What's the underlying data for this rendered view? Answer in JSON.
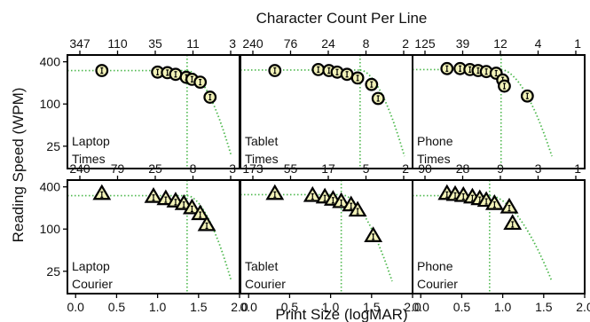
{
  "chart_data": {
    "type": "scatter",
    "title": "Character Count Per Line",
    "xlabel": "Print Size (logMAR)",
    "ylabel": "Reading Speed (WPM)",
    "xlim": [
      -0.1,
      2.0
    ],
    "ylim_log": [
      12,
      500
    ],
    "x_ticks": [
      "0.0",
      "0.5",
      "1.0",
      "1.5",
      "2.0"
    ],
    "y_ticks": [
      "400",
      "100",
      "25"
    ],
    "y_tick_values": [
      400,
      100,
      25
    ],
    "colors": {
      "marker_fill": "#f2f2b8",
      "fit": "#4db84d",
      "frame": "#000000"
    },
    "panels": [
      {
        "id": "laptop-times",
        "row": 0,
        "col": 0,
        "label1": "Laptop",
        "label2": "Times",
        "marker": "circle",
        "top_ticks": [
          "347",
          "110",
          "35",
          "11",
          "3"
        ],
        "plateau": 300,
        "critical_print_size": 1.36,
        "fit_end": [
          1.9,
          18
        ],
        "points": [
          {
            "x": 0.32,
            "y": 300
          },
          {
            "x": 1.0,
            "y": 285
          },
          {
            "x": 1.12,
            "y": 280
          },
          {
            "x": 1.22,
            "y": 265
          },
          {
            "x": 1.35,
            "y": 240
          },
          {
            "x": 1.42,
            "y": 225
          },
          {
            "x": 1.52,
            "y": 205
          },
          {
            "x": 1.64,
            "y": 125
          }
        ]
      },
      {
        "id": "tablet-times",
        "row": 0,
        "col": 1,
        "label1": "Tablet",
        "label2": "Times",
        "marker": "circle",
        "top_ticks": [
          "240",
          "76",
          "24",
          "8",
          "2"
        ],
        "plateau": 305,
        "critical_print_size": 1.36,
        "fit_end": [
          1.9,
          18
        ],
        "points": [
          {
            "x": 0.32,
            "y": 300
          },
          {
            "x": 0.85,
            "y": 310
          },
          {
            "x": 0.98,
            "y": 300
          },
          {
            "x": 1.08,
            "y": 285
          },
          {
            "x": 1.2,
            "y": 265
          },
          {
            "x": 1.33,
            "y": 235
          },
          {
            "x": 1.5,
            "y": 190
          },
          {
            "x": 1.58,
            "y": 120
          }
        ]
      },
      {
        "id": "phone-times",
        "row": 0,
        "col": 2,
        "label1": "Phone",
        "label2": "Times",
        "marker": "circle",
        "top_ticks": [
          "125",
          "39",
          "12",
          "4",
          "1"
        ],
        "plateau": 310,
        "critical_print_size": 0.98,
        "fit_end": [
          1.6,
          18
        ],
        "points": [
          {
            "x": 0.32,
            "y": 320
          },
          {
            "x": 0.48,
            "y": 320
          },
          {
            "x": 0.6,
            "y": 310
          },
          {
            "x": 0.7,
            "y": 300
          },
          {
            "x": 0.8,
            "y": 290
          },
          {
            "x": 0.92,
            "y": 275
          },
          {
            "x": 1.0,
            "y": 220
          },
          {
            "x": 1.02,
            "y": 180
          },
          {
            "x": 1.3,
            "y": 130
          }
        ]
      },
      {
        "id": "laptop-courier",
        "row": 1,
        "col": 0,
        "label1": "Laptop",
        "label2": "Courier",
        "marker": "triangle",
        "top_ticks": [
          "240",
          "79",
          "25",
          "8",
          "3"
        ],
        "plateau": 300,
        "critical_print_size": 1.36,
        "fit_end": [
          1.9,
          18
        ],
        "points": [
          {
            "x": 0.32,
            "y": 320
          },
          {
            "x": 0.95,
            "y": 290
          },
          {
            "x": 1.1,
            "y": 270
          },
          {
            "x": 1.22,
            "y": 250
          },
          {
            "x": 1.32,
            "y": 230
          },
          {
            "x": 1.42,
            "y": 200
          },
          {
            "x": 1.52,
            "y": 165
          },
          {
            "x": 1.6,
            "y": 115
          }
        ]
      },
      {
        "id": "tablet-courier",
        "row": 1,
        "col": 1,
        "label1": "Tablet",
        "label2": "Courier",
        "marker": "triangle",
        "top_ticks": [
          "173",
          "55",
          "17",
          "5",
          "2"
        ],
        "plateau": 310,
        "critical_print_size": 1.13,
        "fit_end": [
          1.75,
          18
        ],
        "points": [
          {
            "x": 0.32,
            "y": 320
          },
          {
            "x": 0.78,
            "y": 300
          },
          {
            "x": 0.93,
            "y": 285
          },
          {
            "x": 1.03,
            "y": 265
          },
          {
            "x": 1.13,
            "y": 245
          },
          {
            "x": 1.25,
            "y": 220
          },
          {
            "x": 1.33,
            "y": 185
          },
          {
            "x": 1.52,
            "y": 80
          }
        ]
      },
      {
        "id": "phone-courier",
        "row": 1,
        "col": 2,
        "label1": "Phone",
        "label2": "Courier",
        "marker": "triangle",
        "top_ticks": [
          "90",
          "28",
          "9",
          "3",
          "1"
        ],
        "plateau": 300,
        "critical_print_size": 0.84,
        "fit_end": [
          1.6,
          18
        ],
        "points": [
          {
            "x": 0.32,
            "y": 320
          },
          {
            "x": 0.42,
            "y": 310
          },
          {
            "x": 0.52,
            "y": 300
          },
          {
            "x": 0.63,
            "y": 285
          },
          {
            "x": 0.72,
            "y": 270
          },
          {
            "x": 0.8,
            "y": 255
          },
          {
            "x": 0.9,
            "y": 230
          },
          {
            "x": 1.08,
            "y": 205
          },
          {
            "x": 1.12,
            "y": 120
          }
        ]
      }
    ]
  }
}
